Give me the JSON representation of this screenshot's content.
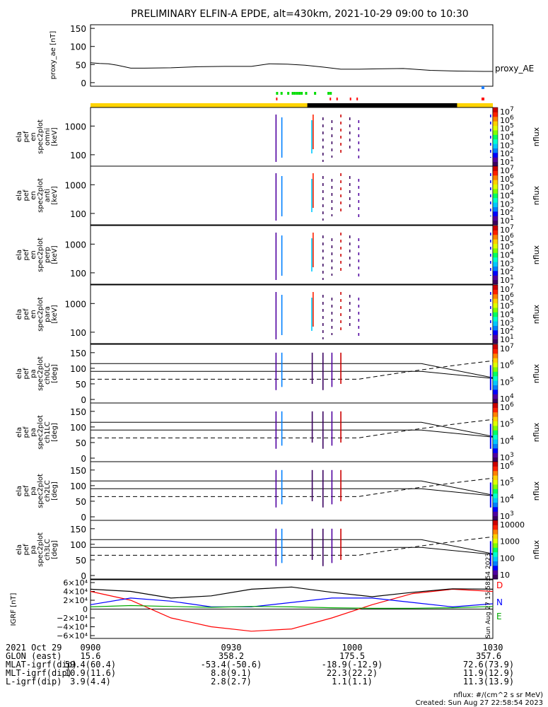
{
  "title": "PRELIMINARY ELFIN-A EPDE, alt=430km, 2021-10-29 09:00 to 10:30",
  "footer": {
    "row_labels": [
      "2021 Oct 29",
      "GLON (east)",
      "MLAT-igrf(dip)",
      "MLT-igrf(dip)",
      "L-igrf(dip)"
    ],
    "time_labels": [
      "0900",
      "0930",
      "1000",
      "1030"
    ],
    "rows": [
      [
        "15.6",
        "358.2",
        "175.5",
        "357.6"
      ],
      [
        "59.4(60.4)",
        "-53.4(-50.6)",
        "-18.9(-12.9)",
        "72.6(73.9)"
      ],
      [
        "10.9(11.6)",
        "8.8(9.1)",
        "22.3(22.2)",
        "11.9(12.9)"
      ],
      [
        "3.9(4.4)",
        "2.8(2.7)",
        "1.1(1.1)",
        "11.3(13.9)"
      ]
    ],
    "units_note": "nflux: #/(cm^2 s sr MeV)",
    "created": "Created: Sun Aug 27 22:58:54 2023",
    "stamp": "Sun Aug 27 15:58:54 2023"
  },
  "colors": {
    "yellow_bar": "#ffd400",
    "black_bar": "#000000",
    "green_marks": "#00dd00",
    "red_marks": "#ff0000",
    "blue_mark": "#2080ff",
    "igrf_D": "#ff0000",
    "igrf_N": "#0000ff",
    "igrf_E": "#00aa00"
  },
  "chart_data": [
    {
      "type": "line",
      "panel": "proxy_ae",
      "ylabel": "proxy_ae [nT]",
      "series_label": "proxy_AE",
      "ylim": [
        -10,
        160
      ],
      "yticks": [
        0,
        50,
        100,
        150
      ],
      "x": [
        0,
        2,
        4,
        6,
        9,
        12,
        18,
        24,
        30,
        36,
        40,
        44,
        48,
        52,
        56,
        60,
        64,
        70,
        76,
        82,
        88,
        90
      ],
      "values": [
        55,
        53,
        52,
        48,
        40,
        40,
        41,
        44,
        45,
        45,
        52,
        51,
        48,
        43,
        37,
        37,
        38,
        39,
        34,
        32,
        31,
        31
      ]
    },
    {
      "type": "heatmap",
      "panel": "energy",
      "panels_ylabels": [
        [
          "ela",
          "pef",
          "en",
          "spec2plot",
          "omni",
          "[keV]"
        ],
        [
          "ela",
          "pef",
          "en",
          "spec2plot",
          "anti",
          "[keV]"
        ],
        [
          "ela",
          "pef",
          "en",
          "spec2plot",
          "perp",
          "[keV]"
        ],
        [
          "ela",
          "pef",
          "en",
          "spec2plot",
          "para",
          "[keV]"
        ]
      ],
      "yticks": [
        100,
        1000
      ],
      "colorbar_label": "nflux",
      "colorbar_ticks": [
        "10",
        "10",
        "10",
        "10",
        "10",
        "10",
        "10"
      ],
      "colorbar_exponents": [
        "7",
        "6",
        "5",
        "4",
        "3",
        "2",
        "1"
      ]
    },
    {
      "type": "heatmap",
      "panel": "pitch_angle",
      "panels_ylabels": [
        [
          "ela",
          "pef",
          "pa",
          "spec2plot",
          "ch0LC",
          "[deg]"
        ],
        [
          "ela",
          "pef",
          "pa",
          "spec2plot",
          "ch1LC",
          "[deg]"
        ],
        [
          "ela",
          "pef",
          "pa",
          "spec2plot",
          "ch2LC",
          "[deg]"
        ],
        [
          "ela",
          "pef",
          "pa",
          "spec2plot",
          "ch3LC",
          "[deg]"
        ]
      ],
      "yticks": [
        0,
        50,
        100,
        150
      ],
      "colorbar_label": "nflux",
      "colorbar_sets": [
        {
          "ticks": [
            "10",
            "10",
            "10",
            "10"
          ],
          "exp": [
            "7",
            "6",
            "5",
            "4"
          ]
        },
        {
          "ticks": [
            "10",
            "10",
            "10",
            "10"
          ],
          "exp": [
            "6",
            "5",
            "4",
            "3"
          ]
        },
        {
          "ticks": [
            "10",
            "10",
            "10",
            "10"
          ],
          "exp": [
            "6",
            "5",
            "4",
            "3"
          ]
        },
        {
          "ticks": [
            "10000",
            "1000",
            "100",
            "10"
          ],
          "exp": [
            "",
            "",
            "",
            ""
          ]
        }
      ]
    },
    {
      "type": "line",
      "panel": "igrf",
      "ylabel": "IGRF [nT]",
      "ylim": [
        -60000,
        60000
      ],
      "yticks_text": [
        "6×10⁴",
        "4×10⁴",
        "2×10⁴",
        "0",
        "−2×10⁴",
        "−4×10⁴",
        "−6×10⁴"
      ],
      "yticks": [
        60000,
        40000,
        20000,
        0,
        -20000,
        -40000,
        -60000
      ],
      "legend": [
        "D",
        "N",
        "E"
      ],
      "x": [
        0,
        9,
        18,
        27,
        36,
        45,
        54,
        63,
        72,
        81,
        90
      ],
      "series": [
        {
          "name": "D",
          "values": [
            40000,
            20000,
            -20000,
            -40000,
            -50000,
            -45000,
            -20000,
            10000,
            35000,
            45000,
            40000
          ]
        },
        {
          "name": "N",
          "values": [
            10000,
            25000,
            18000,
            5000,
            5000,
            15000,
            25000,
            25000,
            15000,
            5000,
            12000
          ]
        },
        {
          "name": "E",
          "values": [
            5000,
            8000,
            6000,
            4000,
            6000,
            5000,
            3000,
            2000,
            2000,
            3000,
            6000
          ]
        },
        {
          "name": "black",
          "values": [
            45000,
            40000,
            25000,
            30000,
            45000,
            50000,
            38000,
            28000,
            38000,
            46000,
            45000
          ]
        }
      ]
    }
  ]
}
